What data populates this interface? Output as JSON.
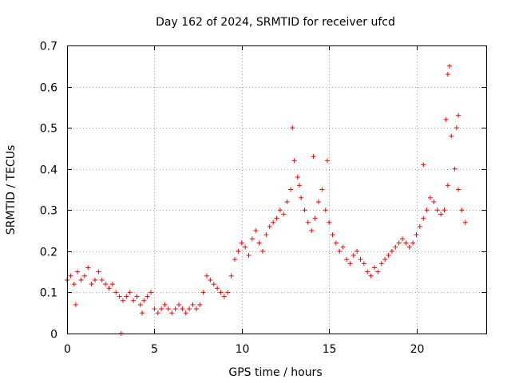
{
  "chart_data": {
    "type": "scatter",
    "title": "Day 162 of 2024, SRMTID for receiver ufcd",
    "xlabel": "GPS time / hours",
    "ylabel": "SRMTID / TECUs",
    "xlim": [
      0,
      24
    ],
    "ylim": [
      0,
      0.7
    ],
    "xticks": [
      0,
      5,
      10,
      15,
      20
    ],
    "yticks": [
      0,
      0.1,
      0.2,
      0.3,
      0.4,
      0.5,
      0.6,
      0.7
    ],
    "ytick_labels": [
      "0",
      "0.1",
      "0.2",
      "0.3",
      "0.4",
      "0.5",
      "0.6",
      "0.7"
    ],
    "grid": true,
    "marker": "+",
    "color": "#ff0000",
    "series": [
      {
        "name": "SRMTID",
        "x": [
          0.0,
          0.2,
          0.4,
          0.6,
          0.8,
          1.0,
          1.2,
          1.4,
          1.6,
          1.8,
          2.0,
          2.2,
          2.4,
          2.6,
          2.8,
          3.0,
          3.2,
          3.4,
          3.6,
          3.8,
          4.0,
          4.2,
          4.4,
          4.6,
          4.8,
          5.0,
          5.2,
          5.4,
          5.6,
          5.8,
          6.0,
          6.2,
          6.4,
          6.6,
          6.8,
          7.0,
          7.2,
          7.4,
          7.6,
          7.8,
          8.0,
          8.2,
          8.4,
          8.6,
          8.8,
          9.0,
          9.2,
          9.4,
          9.6,
          9.8,
          10.0,
          10.2,
          10.4,
          10.6,
          10.8,
          11.0,
          11.2,
          11.4,
          11.6,
          11.8,
          12.0,
          12.2,
          12.4,
          12.6,
          12.8,
          13.0,
          13.2,
          13.4,
          13.6,
          13.8,
          14.0,
          14.2,
          14.4,
          14.6,
          14.8,
          15.0,
          15.2,
          15.4,
          15.6,
          15.8,
          16.0,
          16.2,
          16.4,
          16.6,
          16.8,
          17.0,
          17.2,
          17.4,
          17.6,
          17.8,
          18.0,
          18.2,
          18.4,
          18.6,
          18.8,
          19.0,
          19.2,
          19.4,
          19.6,
          19.8,
          20.0,
          20.2,
          20.4,
          20.6,
          20.8,
          21.0,
          21.2,
          21.4,
          21.6,
          21.8,
          22.0,
          22.2,
          22.4,
          22.6,
          22.8
        ],
        "y": [
          0.13,
          0.14,
          0.12,
          0.15,
          0.13,
          0.14,
          0.16,
          0.12,
          0.13,
          0.15,
          0.13,
          0.12,
          0.11,
          0.12,
          0.1,
          0.09,
          0.08,
          0.09,
          0.1,
          0.08,
          0.09,
          0.07,
          0.08,
          0.09,
          0.1,
          0.06,
          0.05,
          0.06,
          0.07,
          0.06,
          0.05,
          0.06,
          0.07,
          0.06,
          0.05,
          0.06,
          0.07,
          0.06,
          0.07,
          0.1,
          0.14,
          0.13,
          0.12,
          0.11,
          0.1,
          0.09,
          0.1,
          0.14,
          0.18,
          0.2,
          0.22,
          0.21,
          0.19,
          0.23,
          0.25,
          0.22,
          0.2,
          0.24,
          0.26,
          0.27,
          0.28,
          0.3,
          0.29,
          0.32,
          0.35,
          0.42,
          0.38,
          0.33,
          0.3,
          0.27,
          0.25,
          0.28,
          0.32,
          0.35,
          0.3,
          0.27,
          0.24,
          0.22,
          0.2,
          0.21,
          0.18,
          0.17,
          0.19,
          0.2,
          0.18,
          0.17,
          0.15,
          0.14,
          0.16,
          0.15,
          0.17,
          0.18,
          0.19,
          0.2,
          0.21,
          0.22,
          0.23,
          0.22,
          0.21,
          0.22,
          0.24,
          0.26,
          0.28,
          0.3,
          0.33,
          0.32,
          0.3,
          0.29,
          0.3,
          0.36,
          0.48,
          0.4,
          0.35,
          0.3,
          0.27
        ],
        "outliers": [
          [
            12.9,
            0.5
          ],
          [
            14.1,
            0.43
          ],
          [
            14.9,
            0.42
          ],
          [
            21.9,
            0.65
          ],
          [
            21.8,
            0.63
          ],
          [
            22.4,
            0.53
          ],
          [
            22.3,
            0.5
          ],
          [
            21.7,
            0.52
          ],
          [
            20.4,
            0.41
          ],
          [
            13.3,
            0.36
          ],
          [
            3.1,
            0.0
          ],
          [
            0.5,
            0.07
          ],
          [
            4.3,
            0.05
          ]
        ]
      }
    ]
  }
}
